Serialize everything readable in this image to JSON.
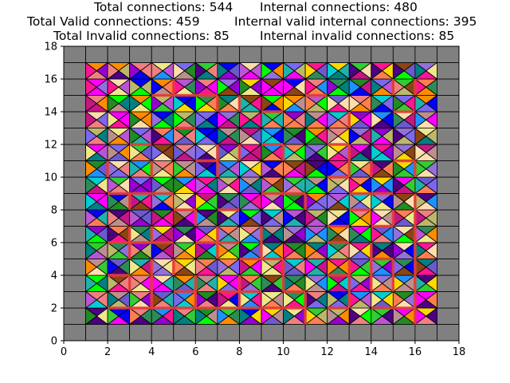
{
  "chart_data": {
    "type": "grid-tiling",
    "title_lines": [
      [
        "Total connections: 544",
        "Internal connections: 480"
      ],
      [
        "Total Valid connections: 459",
        "Internal valid internal connections: 395"
      ],
      [
        "Total Invalid connections: 85",
        "Internal invalid connections: 85"
      ]
    ],
    "stats": {
      "total_connections": 544,
      "internal_connections": 480,
      "total_valid_connections": 459,
      "internal_valid_connections": 395,
      "total_invalid_connections": 85,
      "internal_invalid_connections": 85
    },
    "xlim": [
      0,
      18
    ],
    "ylim": [
      0,
      18
    ],
    "xticks": [
      "0",
      "2",
      "4",
      "6",
      "8",
      "10",
      "12",
      "14",
      "16",
      "18"
    ],
    "yticks": [
      "0",
      "2",
      "4",
      "6",
      "8",
      "10",
      "12",
      "14",
      "16",
      "18"
    ],
    "grid_size": 18,
    "inner_cells": [
      1,
      17
    ],
    "colors": {
      "border_cell": "#808080",
      "invalid_edge": "#e8403a",
      "cell_stroke": "#000000",
      "palette": [
        "#ff1493",
        "#ffd700",
        "#7b68ee",
        "#9400d3",
        "#00ced1",
        "#32cd32",
        "#ff8c00",
        "#0000ff",
        "#f0e68c",
        "#20b2aa",
        "#c71585",
        "#ff00ff",
        "#6a5acd",
        "#2e8b57",
        "#bdb76b",
        "#ffdead",
        "#8b4513",
        "#4b0082",
        "#f08080",
        "#00ff00",
        "#1e90ff",
        "#bc8f8f",
        "#008080",
        "#ba55d3",
        "#ff7f50",
        "#9370db",
        "#228b22"
      ]
    },
    "invalid_segments": [
      [
        2,
        2,
        11,
        2
      ],
      [
        3,
        3,
        3,
        4
      ],
      [
        2,
        4,
        3,
        4
      ],
      [
        4,
        2,
        4,
        5
      ],
      [
        5,
        3,
        6,
        3
      ],
      [
        6,
        2,
        6,
        4
      ],
      [
        5,
        4,
        5,
        5
      ],
      [
        7,
        3,
        9,
        3
      ],
      [
        8,
        2,
        8,
        4
      ],
      [
        10,
        3,
        11,
        3
      ],
      [
        11,
        1,
        11,
        3
      ],
      [
        12,
        2,
        13,
        2
      ],
      [
        13,
        2,
        13,
        5
      ],
      [
        12,
        4,
        13,
        4
      ],
      [
        14,
        2,
        16,
        2
      ],
      [
        14,
        3,
        14,
        6
      ],
      [
        15,
        3,
        15,
        5
      ],
      [
        16,
        1,
        16,
        9
      ],
      [
        15,
        7,
        15,
        8
      ],
      [
        14,
        5,
        15,
        5
      ],
      [
        2,
        6,
        5,
        6
      ],
      [
        3,
        5,
        3,
        7
      ],
      [
        4,
        6,
        4,
        7
      ],
      [
        6,
        6,
        8,
        6
      ],
      [
        7,
        5,
        7,
        7
      ],
      [
        8,
        5,
        10,
        5
      ],
      [
        9,
        5,
        9,
        7
      ],
      [
        10,
        3,
        10,
        5
      ],
      [
        12,
        6,
        13,
        6
      ],
      [
        12,
        7,
        13,
        7
      ],
      [
        14,
        7,
        15,
        7
      ],
      [
        13,
        8,
        14,
        8
      ],
      [
        14,
        9,
        15,
        9
      ],
      [
        3,
        8,
        3,
        9
      ],
      [
        2,
        9,
        4,
        9
      ],
      [
        4,
        9,
        5,
        9
      ],
      [
        5,
        8,
        6,
        8
      ],
      [
        6,
        7,
        6,
        8
      ],
      [
        7,
        8,
        8,
        8
      ],
      [
        9,
        9,
        11,
        9
      ],
      [
        11,
        8,
        11,
        9
      ],
      [
        12,
        10,
        13,
        10
      ],
      [
        13,
        9,
        14,
        9
      ],
      [
        14,
        10,
        14,
        11
      ],
      [
        15,
        11,
        16,
        11
      ],
      [
        16,
        10,
        16,
        11
      ],
      [
        13,
        10,
        13,
        12
      ],
      [
        2,
        10,
        2,
        11
      ],
      [
        4,
        10,
        4,
        11
      ],
      [
        6,
        11,
        7,
        11
      ],
      [
        7,
        10,
        7,
        12
      ],
      [
        8,
        11,
        8,
        12
      ],
      [
        9,
        12,
        10,
        12
      ],
      [
        10,
        11,
        10,
        12
      ],
      [
        12,
        12,
        13,
        12
      ],
      [
        3,
        12,
        4,
        12
      ],
      [
        5,
        13,
        6,
        13
      ],
      [
        9,
        14,
        10,
        14
      ],
      [
        13,
        13,
        13,
        14
      ],
      [
        15,
        14,
        16,
        14
      ],
      [
        15,
        15,
        15,
        16
      ],
      [
        16,
        15,
        16,
        16
      ],
      [
        4,
        15,
        7,
        15
      ],
      [
        5,
        15,
        5,
        16
      ],
      [
        7,
        14,
        7,
        15
      ],
      [
        8,
        14,
        8,
        15
      ],
      [
        11,
        15,
        12,
        15
      ]
    ]
  }
}
